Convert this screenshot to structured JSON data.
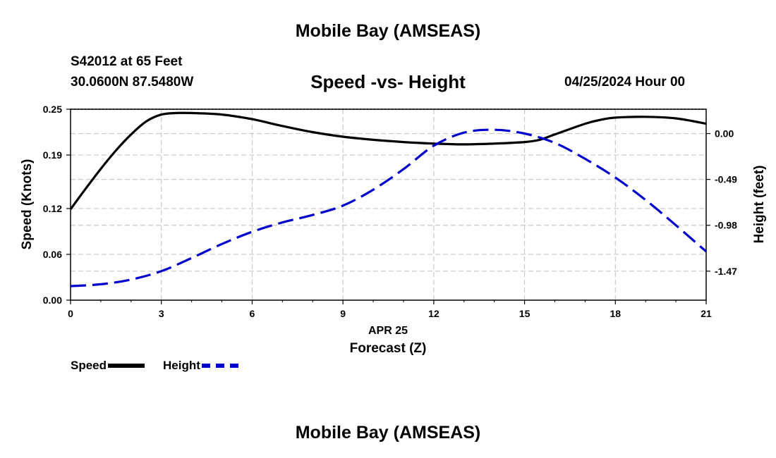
{
  "header": {
    "title": "Mobile Bay (AMSEAS)",
    "station": "S42012 at 65 Feet",
    "coords": "30.0600N  87.5480W",
    "datetime": "04/25/2024 Hour 00"
  },
  "footer": {
    "title": "Mobile Bay (AMSEAS)"
  },
  "chart_data": {
    "type": "line",
    "title": "Speed -vs- Height",
    "xlabel": "Forecast (Z)",
    "xsublabel": "APR 25",
    "ylabel": "Speed (Knots)",
    "y2label": "Height (feet)",
    "xlim": [
      0,
      21
    ],
    "xticks": [
      0,
      3,
      6,
      9,
      12,
      15,
      18,
      21
    ],
    "ylim": [
      0,
      0.25
    ],
    "yticks": [
      "0.00",
      "0.06",
      "0.12",
      "0.19",
      "0.25"
    ],
    "y2lim": [
      -1.78,
      0.26
    ],
    "y2ticks": [
      "-1.47",
      "-0.98",
      "-0.49",
      "0.00"
    ],
    "grid": true,
    "series": [
      {
        "name": "Speed",
        "axis": "left",
        "color": "#000000",
        "dash": "solid",
        "x": [
          0,
          0.5,
          1,
          1.5,
          2,
          2.5,
          3,
          3.5,
          4,
          5,
          6,
          7,
          8,
          9,
          10,
          11,
          12,
          13,
          14,
          15,
          15.5,
          16,
          17,
          17.5,
          18,
          19,
          20,
          21
        ],
        "values": [
          0.119,
          0.146,
          0.172,
          0.196,
          0.217,
          0.234,
          0.243,
          0.245,
          0.245,
          0.243,
          0.237,
          0.228,
          0.22,
          0.214,
          0.21,
          0.207,
          0.205,
          0.204,
          0.205,
          0.207,
          0.21,
          0.217,
          0.231,
          0.236,
          0.239,
          0.24,
          0.238,
          0.231
        ]
      },
      {
        "name": "Height",
        "axis": "right",
        "color": "#0000cc",
        "dash": "dashed",
        "x": [
          0,
          1,
          2,
          3,
          4,
          5,
          6,
          7,
          8,
          9,
          10,
          11,
          12,
          13,
          14,
          15,
          16,
          17,
          18,
          19,
          20,
          21
        ],
        "values": [
          -1.63,
          -1.61,
          -1.56,
          -1.47,
          -1.33,
          -1.18,
          -1.05,
          -0.95,
          -0.87,
          -0.77,
          -0.6,
          -0.38,
          -0.13,
          0.01,
          0.04,
          0.0,
          -0.1,
          -0.27,
          -0.47,
          -0.71,
          -0.98,
          -1.26
        ]
      }
    ],
    "legend": [
      {
        "label": "Speed",
        "color": "#000000",
        "dash": "solid"
      },
      {
        "label": "Height",
        "color": "#0000cc",
        "dash": "dashed"
      }
    ]
  }
}
